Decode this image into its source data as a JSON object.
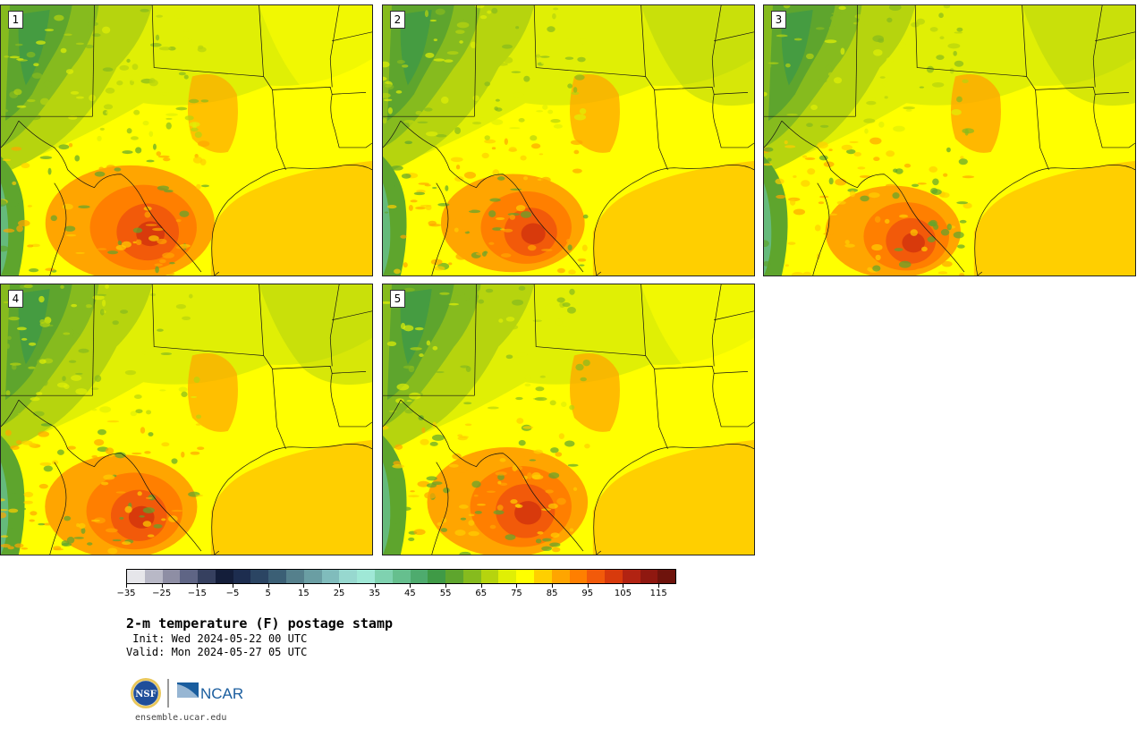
{
  "panels": [
    {
      "number": "1"
    },
    {
      "number": "2"
    },
    {
      "number": "3"
    },
    {
      "number": "4"
    },
    {
      "number": "5"
    }
  ],
  "colorbar": {
    "colors": [
      "#e6e6ea",
      "#b8b8c6",
      "#8e8ea4",
      "#5f6585",
      "#36405f",
      "#141e3a",
      "#1d2d4f",
      "#2b4563",
      "#3b5f75",
      "#55808c",
      "#6a9ea3",
      "#80bcbc",
      "#97d8cf",
      "#9fe8d6",
      "#7fd2b0",
      "#66bf8e",
      "#4eab6e",
      "#3f9a46",
      "#5ea52d",
      "#86bb1e",
      "#b6d40e",
      "#e0ef05",
      "#ffff00",
      "#ffcf00",
      "#ffa500",
      "#ff7f00",
      "#f25a0a",
      "#d83a0c",
      "#b22312",
      "#8f1810",
      "#6e130c"
    ],
    "ticks": [
      "−35",
      "−25",
      "−15",
      "−5",
      "5",
      "15",
      "25",
      "35",
      "45",
      "55",
      "65",
      "75",
      "85",
      "95",
      "105",
      "115"
    ],
    "units": "F"
  },
  "title": "2-m temperature (F) postage stamp",
  "init": " Init: Wed 2024-05-22 00 UTC",
  "valid": "Valid: Mon 2024-05-27 05 UTC",
  "logos": {
    "left": "NSF",
    "right": "NCAR"
  },
  "website": "ensemble.ucar.edu"
}
